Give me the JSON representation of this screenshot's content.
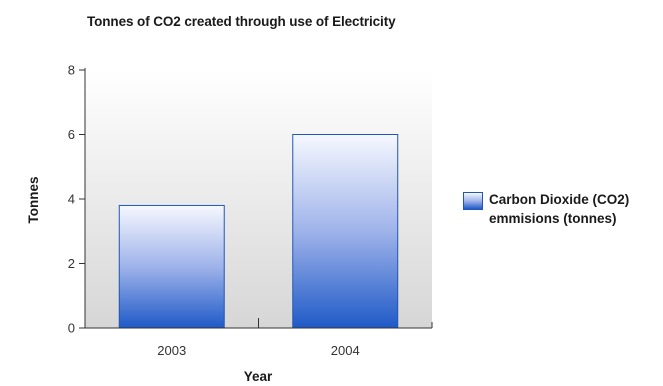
{
  "chart_data": {
    "type": "bar",
    "title": "Tonnes of CO2 created through use of Electricity",
    "xlabel": "Year",
    "ylabel": "Tonnes",
    "categories": [
      "2003",
      "2004"
    ],
    "series": [
      {
        "name": "Carbon Dioxide (CO2) emmisions (tonnes)",
        "values": [
          3.8,
          6.0
        ]
      }
    ],
    "ylim": [
      0,
      8
    ],
    "yticks": [
      0,
      2,
      4,
      6,
      8
    ],
    "ytick_labels": [
      "0",
      "2",
      "4",
      "6",
      "8"
    ],
    "grid": false,
    "legend": "right",
    "colors": {
      "bar_top": "#f6f8ff",
      "bar_mid": "#9fb3ea",
      "bar_bottom": "#1f5ac7",
      "bar_border": "#1f56b8",
      "plot_bg_top": "#ffffff",
      "plot_bg_bottom": "#d6d6d6"
    }
  }
}
